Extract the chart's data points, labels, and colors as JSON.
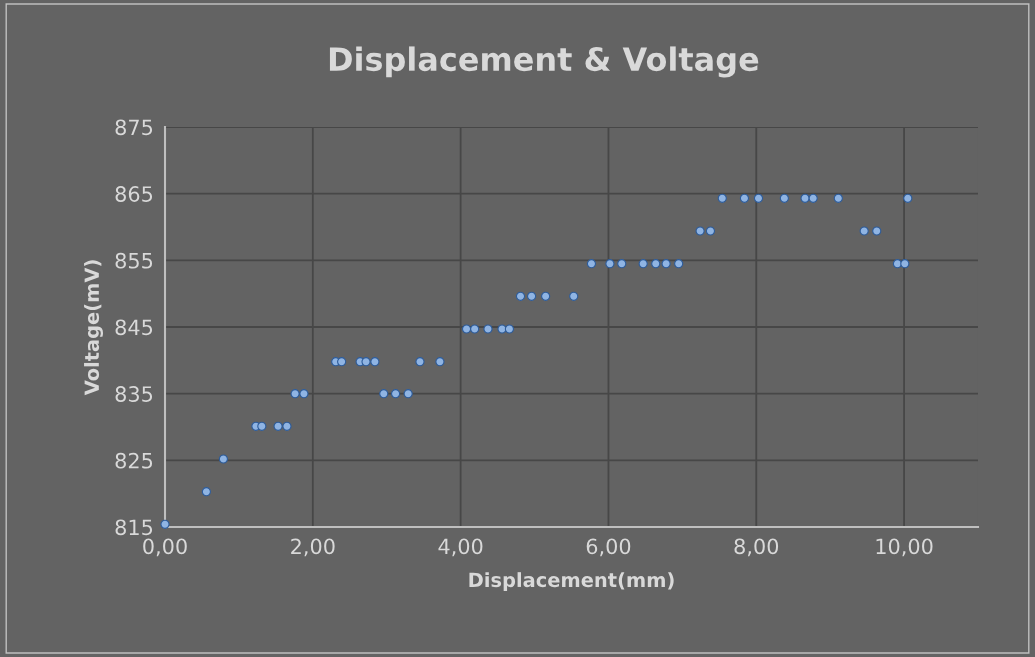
{
  "chart_data": {
    "type": "scatter",
    "title": "Displacement & Voltage",
    "xlabel": "Displacement(mm)",
    "ylabel": "Voltage(mV)",
    "series": [
      {
        "color": "#8fb4e3",
        "x": [
          0.0,
          0.56,
          0.79,
          1.23,
          1.31,
          1.53,
          1.65,
          1.76,
          1.88,
          2.31,
          2.39,
          2.64,
          2.72,
          2.84,
          2.96,
          3.12,
          3.29,
          3.45,
          3.72,
          4.08,
          4.19,
          4.37,
          4.56,
          4.66,
          4.81,
          4.96,
          5.15,
          5.53,
          5.77,
          6.02,
          6.18,
          6.47,
          6.64,
          6.78,
          6.95,
          7.24,
          7.38,
          7.54,
          7.84,
          8.03,
          8.38,
          8.66,
          8.77,
          9.11,
          9.46,
          9.63,
          9.91,
          10.01,
          10.05
        ],
        "values": [
          815.4,
          820.3,
          825.2,
          830.1,
          830.1,
          830.1,
          830.1,
          835.0,
          835.0,
          839.8,
          839.8,
          839.8,
          839.8,
          839.8,
          835.0,
          835.0,
          835.0,
          839.8,
          839.8,
          844.7,
          844.7,
          844.7,
          844.7,
          844.7,
          849.6,
          849.6,
          849.6,
          849.6,
          854.5,
          854.5,
          854.5,
          854.5,
          854.5,
          854.5,
          854.5,
          859.4,
          859.4,
          864.3,
          864.3,
          864.3,
          864.3,
          864.3,
          864.3,
          864.3,
          859.4,
          859.4,
          854.5,
          854.5,
          864.3
        ]
      }
    ],
    "xlim": [
      0,
      11
    ],
    "xticks": [
      {
        "value": 0,
        "label": "0,00"
      },
      {
        "value": 2,
        "label": "2,00"
      },
      {
        "value": 4,
        "label": "4,00"
      },
      {
        "value": 6,
        "label": "6,00"
      },
      {
        "value": 8,
        "label": "8,00"
      },
      {
        "value": 10,
        "label": "10,00"
      }
    ],
    "ylim": [
      815,
      875
    ],
    "yticks": [
      815,
      825,
      835,
      845,
      855,
      865,
      875
    ],
    "grid": true,
    "marker": "circle"
  }
}
